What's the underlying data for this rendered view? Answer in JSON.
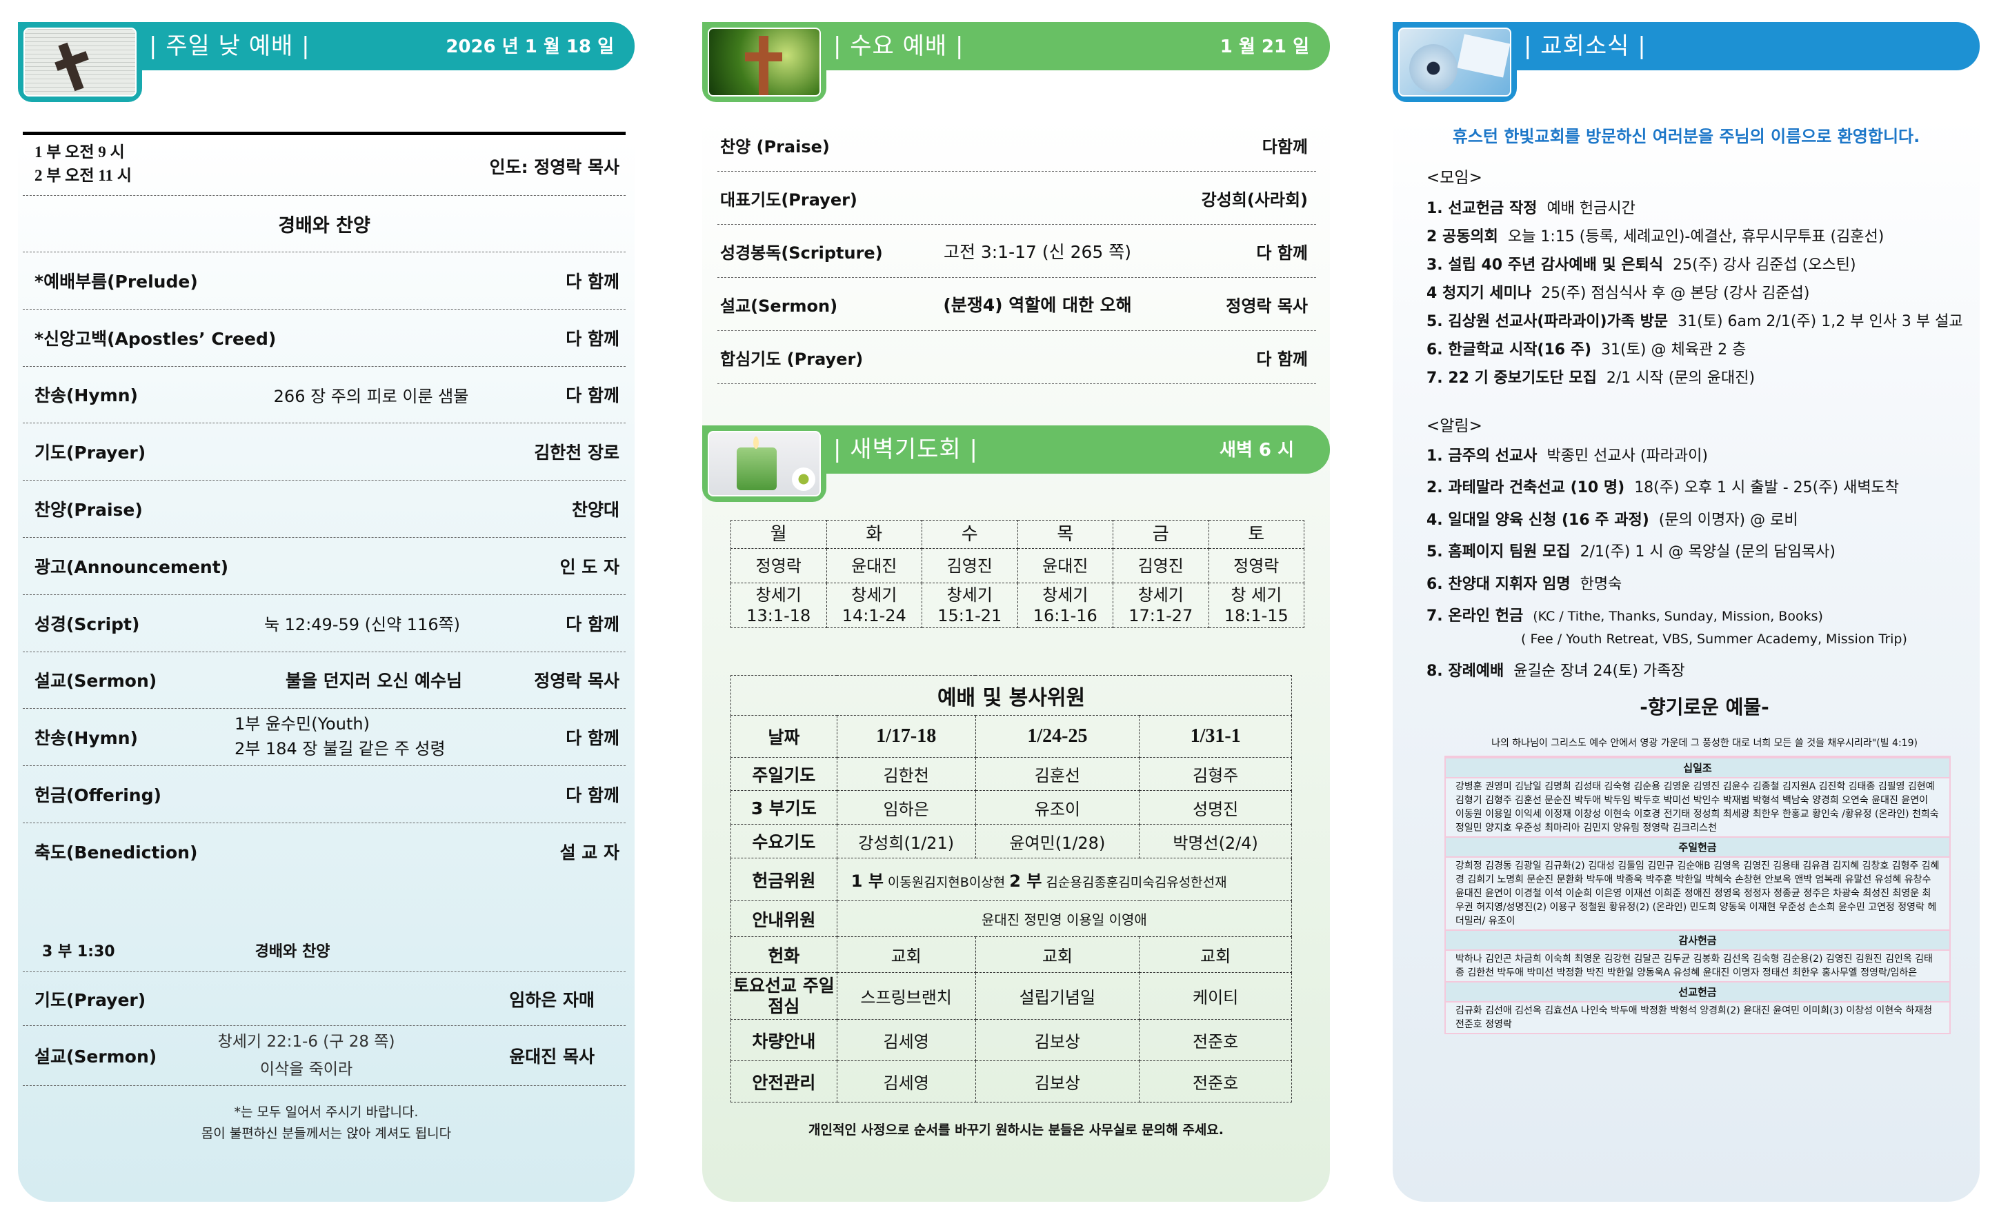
{
  "colors": {
    "sunday": "#17a9ae",
    "wednesday": "#68c064",
    "news": "#1d91d3",
    "welcome": "#1b76c8"
  },
  "sunday": {
    "title": "| 주일 낮 예배 |",
    "date": "2026 년 1 월 18 일",
    "image": "bible-cross-image",
    "times": [
      "1 부  오전 9 시",
      "2 부  오전 11 시"
    ],
    "leader": "인도: 정영락 목사",
    "section": "경배와 찬양",
    "items": [
      {
        "label": "*예배부름(Prelude)",
        "middle": "",
        "right": "다 함께"
      },
      {
        "label": "*신앙고백(Apostles’ Creed)",
        "middle": "",
        "right": "다 함께"
      },
      {
        "label": "찬송(Hymn)",
        "middle": "266 장 주의 피로 이룬 샘물",
        "right": "다 함께"
      },
      {
        "label": "기도(Prayer)",
        "middle": "",
        "right": "김한천 장로"
      },
      {
        "label": "찬양(Praise)",
        "middle": "",
        "right": "찬양대"
      },
      {
        "label": "광고(Announcement)",
        "middle": "",
        "right": "인 도 자"
      },
      {
        "label": "성경(Script)",
        "middle": "눅 12:49-59  (신약 116쪽)",
        "right": "다 함께"
      },
      {
        "label": "설교(Sermon)",
        "middle": "불을 던지러 오신 예수님",
        "right": "정영락 목사"
      },
      {
        "label": "찬송(Hymn)",
        "lines": [
          "1부   윤수민(Youth)",
          "2부   184 장 불길 같은 주 성령"
        ],
        "right": "다 함께"
      },
      {
        "label": "헌금(Offering)",
        "middle": "",
        "right": "다 함께"
      },
      {
        "label": "축도(Benediction)",
        "middle": "",
        "right": "설 교 자"
      }
    ],
    "third": {
      "time": "3 부 1:30",
      "section": "경배와 찬양",
      "prayer": {
        "label": "기도(Prayer)",
        "right": "임하은 자매"
      },
      "sermon": {
        "label": "설교(Sermon)",
        "lines": [
          "창세기 22:1-6 (구 28 쪽)",
          "이삭을 죽이라"
        ],
        "right": "윤대진 목사"
      }
    },
    "notes": [
      "*는 모두 일어서 주시기 바랍니다.",
      "몸이 불편하신 분들께서는 앉아 계셔도 됩니다"
    ]
  },
  "wednesday": {
    "title": "| 수요 예배 |",
    "date": "1 월 21 일",
    "image": "cross-green-image",
    "items": [
      {
        "label": "찬양 (Praise)",
        "middle": "",
        "right": "다함께"
      },
      {
        "label": "대표기도(Prayer)",
        "middle": "",
        "right": "강성희(사라회)"
      },
      {
        "label": "성경봉독(Scripture)",
        "middle": "고전 3:1-17 (신 265 쪽)",
        "right": "다 함께"
      },
      {
        "label": "설교(Sermon)",
        "middle": "(분쟁4) 역할에 대한 오해",
        "right": "정영락 목사"
      },
      {
        "label": "합심기도 (Prayer)",
        "middle": "",
        "right": "다 함께"
      }
    ]
  },
  "dawn": {
    "title": "| 새벽기도회 |",
    "time": "새벽 6 시",
    "image": "candles-image",
    "days": [
      "월",
      "화",
      "수",
      "목",
      "금",
      "토"
    ],
    "leaders": [
      "정영락",
      "윤대진",
      "김영진",
      "윤대진",
      "김영진",
      "정영락"
    ],
    "books": [
      "창세기",
      "창세기",
      "창세기",
      "창세기",
      "창세기",
      "창 세기"
    ],
    "passages": [
      "13:1-18",
      "14:1-24",
      "15:1-21",
      "16:1-16",
      "17:1-27",
      "18:1-15"
    ]
  },
  "service": {
    "title": "예배 및 봉사위원",
    "date_label": "날짜",
    "dates": [
      "1/17-18",
      "1/24-25",
      "1/31-1"
    ],
    "rows": [
      {
        "label": "주일기도",
        "values": [
          "김한천",
          "김훈선",
          "김형주"
        ]
      },
      {
        "label": "3 부기도",
        "values": [
          "임하은",
          "유조이",
          "성명진"
        ]
      },
      {
        "label": "수요기도",
        "values": [
          "강성희(1/21)",
          "윤여민(1/28)",
          "박명선(2/4)"
        ]
      },
      {
        "label": "헌금위원",
        "span": {
          "p1": "1 부",
          "n1": "이동원김지현B이상현",
          "p2": "2 부",
          "n2": "김순용김종훈김미숙김유성한선재"
        }
      },
      {
        "label": "안내위원",
        "spantext": "윤대진 정민영 이용일 이영애"
      },
      {
        "label": "헌화",
        "values": [
          "교회",
          "교회",
          "교회"
        ]
      },
      {
        "label": "토요선교 주일점심",
        "values": [
          "스프링브랜치",
          "설립기념일",
          "케이티"
        ]
      },
      {
        "label": "차량안내",
        "values": [
          "김세영",
          "김보상",
          "전준호"
        ]
      },
      {
        "label": "안전관리",
        "values": [
          "김세영",
          "김보상",
          "전준호"
        ]
      }
    ],
    "footer": "개인적인 사정으로 순서를 바꾸기 원하시는 분들은 사무실로 문의해 주세요."
  },
  "news": {
    "title": "| 교회소식 |",
    "image": "good-luck-flower-image",
    "welcome": "휴스턴 한빛교회를 방문하신 여러분을 주님의 이름으로 환영합니다.",
    "meeting_heading": "<모임>",
    "meetings": [
      {
        "title": "1. 선교헌금 작정",
        "detail": "예배 헌금시간"
      },
      {
        "title": "2 공동의회",
        "detail": "오늘 1:15 (등록, 세례교인)-예결산, 휴무시무투표 (김훈선)"
      },
      {
        "title": "3. 설립 40 주년 감사예배 및 은퇴식",
        "detail": "25(주) 강사 김준섭 (오스틴)"
      },
      {
        "title": "4 청지기 세미나",
        "detail": "25(주) 점심식사 후 @ 본당 (강사 김준섭)"
      },
      {
        "title": "5. 김상원 선교사(파라과이)가족 방문",
        "detail": "31(토) 6am 2/1(주) 1,2 부 인사 3 부 설교"
      },
      {
        "title": "6. 한글학교 시작(16 주)",
        "detail": "31(토) @ 체육관 2 층"
      },
      {
        "title": "7. 22 기 중보기도단 모집",
        "detail": "2/1 시작 (문의 윤대진)"
      }
    ],
    "notice_heading": "<알림>",
    "notices": [
      {
        "title": "1. 금주의 선교사",
        "detail": "박종민 선교사 (파라과이)"
      },
      {
        "title": "2. 과테말라 건축선교 (10 명)",
        "detail": "18(주) 오후 1 시 출발 - 25(주) 새벽도착"
      },
      {
        "title": "4. 일대일 양육 신청 (16 주 과정)",
        "detail": "(문의 이명자) @ 로비"
      },
      {
        "title": "5. 홈페이지 팀원 모집",
        "detail": "2/1(주) 1 시 @ 목양실 (문의 담임목사)"
      },
      {
        "title": "6. 찬양대 지휘자 임명",
        "detail": "한명숙"
      },
      {
        "title": "7. 온라인 헌금",
        "detail": "(KC / Tithe, Thanks, Sunday, Mission, Books)"
      },
      {
        "title": "",
        "detail": "( Fee / Youth Retreat, VBS, Summer Academy, Mission Trip)"
      },
      {
        "title": "8. 장례예배",
        "detail": "윤길순 장녀 24(토) 가족장"
      }
    ],
    "offering_title": "-향기로운 예물-",
    "verse": "나의 하나님이 그리스도 예수 안에서 영광 가운데 그 풍성한 대로 너희 모든 쓸 것을 채우시리라\"(빌 4:19)",
    "offerings": [
      {
        "name": "십일조",
        "names": "강병훈 권영미 김남일 김명희 김성태 김숙형 김순용 김영운 김영진 김윤수 김종철 김지원A 김진학 김태종 김필영 김현예 김형기 김형주 김훈선 문순진 박두애 박두임 박두호 박미선 박인수 박재범 박형석 백남숙 양경희 오연숙 윤대진 윤연이 이동원 이용일 이익세 이정재 이창성 이현숙 이호경 전기태 정성희 최세광 최한우 한홍교 황인숙 /황유정 (온라인) 천희숙 정일민 양지호 우준성 최마리아 김민지 양유림 정영락 김크리스천"
      },
      {
        "name": "주일헌금",
        "names": "강희정 김경동 김광일 김규화(2) 김대성 김둘임 김민규 김순애B 김영옥 김영진 김용태 김유겸 김지혜 김창호 김형주 김혜경 김희기 노명희 문순진 문환화 박두애 박종욱 박주훈 박한일 박혜숙 손창현 안보옥 앤박 엄복래 유말선 유성혜 유창수 윤대진 윤연이 이경철 이석 이순희 이은영 이재선 이희준 정애진 정영옥 정정자 정종균 정주은 차광숙 최성진 최영운 최우권 허지영/성명진(2) 이용구 정철원 황유정(2) (온라인) 민도희 양동욱 이재현 우준성 손소희 윤수민 고연정 정영락 헤더밀러/ 유조이"
      },
      {
        "name": "감사헌금",
        "names": "박하나 김인곤 차금희 이숙희 최영운 김강현 김달곤 김두균 김봉화 김선옥 김숙형 김순용(2) 김영진 김원진 김인옥 김태종 김한천 박두애 박미선 박정환 박진 박한일 양동욱A 유성혜 윤대진 이명자 정태선 최한우 홍사무엘 정영락/임하은"
      },
      {
        "name": "선교헌금",
        "names": "김규화 김선애 김선옥 김효선A 나인숙 박두애 박정환 박형석 양경희(2) 윤대진 윤여민 이미희(3) 이창성 이현숙 하재청 전준호 정영락"
      }
    ]
  }
}
